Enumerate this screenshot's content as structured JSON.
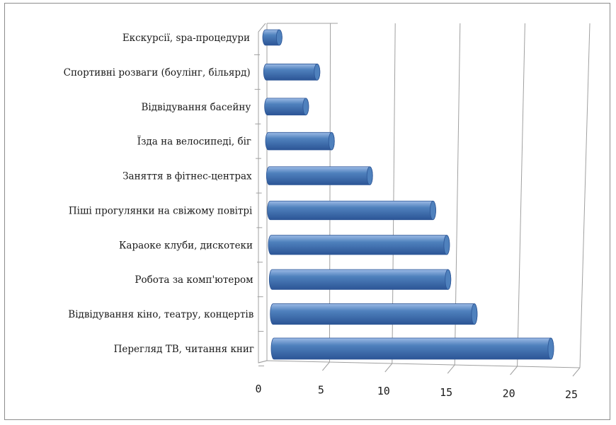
{
  "chart_data": {
    "type": "bar",
    "orientation": "horizontal",
    "style": "3d-cylinder",
    "categories": [
      "Екскурсії, spa-процедури",
      "Спортивні розваги (боулінг, більярд)",
      "Відвідування басейну",
      "Їзда на велосипеді, біг",
      "Заняття в фітнес-центрах",
      "Піші прогулянки на свіжому повітрі",
      "Караоке клуби, дискотеки",
      "Робота за комп'ютером",
      "Відвідування кіно, театру, концертів",
      "Перегляд ТВ, читання книг"
    ],
    "values": [
      1,
      4,
      3,
      5,
      8,
      13,
      14,
      14,
      16,
      22
    ],
    "xlim": [
      0,
      25
    ],
    "xticks": [
      "0",
      "5",
      "10",
      "15",
      "20",
      "25"
    ],
    "grid": true,
    "legend": "none",
    "colors": {
      "bar": "#4f81bd",
      "bar_light": "#9dbbe6",
      "bar_dark": "#2c5596",
      "grid": "#a0a0a0"
    }
  }
}
